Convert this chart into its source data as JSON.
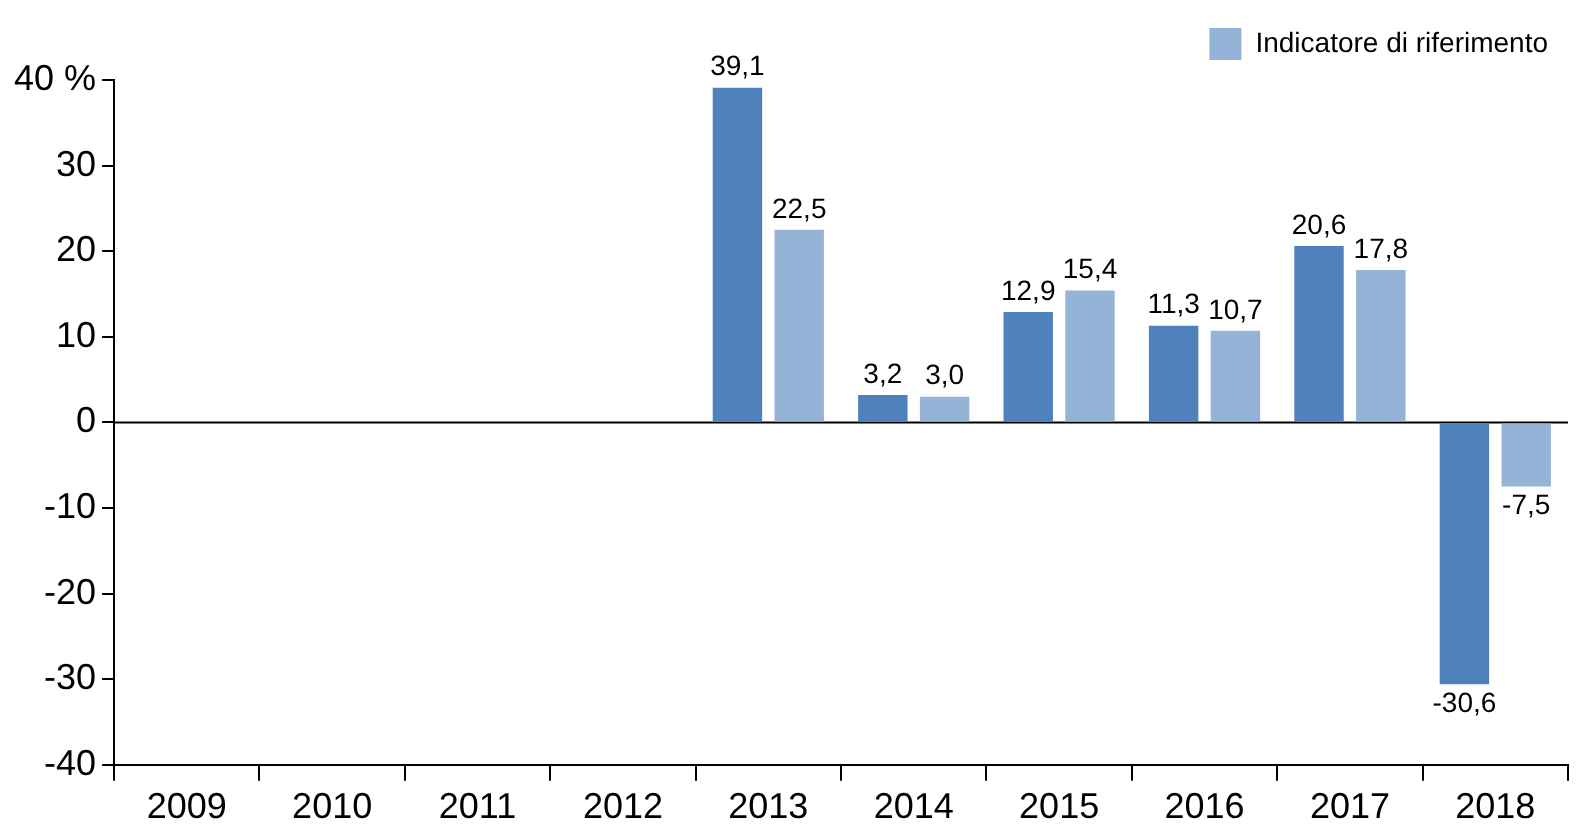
{
  "chart_data": {
    "type": "bar",
    "categories": [
      "2009",
      "2010",
      "2011",
      "2012",
      "2013",
      "2014",
      "2015",
      "2016",
      "2017",
      "2018"
    ],
    "series": [
      {
        "color": "#4f81bd",
        "values": [
          null,
          null,
          null,
          null,
          39.1,
          3.2,
          12.9,
          11.3,
          20.6,
          -30.6
        ],
        "value_labels": [
          null,
          null,
          null,
          null,
          "39,1",
          "3,2",
          "12,9",
          "11,3",
          "20,6",
          "-30,6"
        ]
      },
      {
        "name": "Indicatore di riferimento",
        "color": "#95b3d7",
        "values": [
          null,
          null,
          null,
          null,
          22.5,
          3.0,
          15.4,
          10.7,
          17.8,
          -7.5
        ],
        "value_labels": [
          null,
          null,
          null,
          null,
          "22,5",
          "3,0",
          "15,4",
          "10,7",
          "17,8",
          "-7,5"
        ]
      }
    ],
    "ylim": [
      -40,
      40
    ],
    "yticks": [
      -40,
      -30,
      -20,
      -10,
      0,
      10,
      20,
      30,
      {
        "value": 40,
        "label": "40 %"
      }
    ],
    "ref_lines": [
      {
        "axis": "y",
        "value": 0,
        "color": "#000000"
      }
    ],
    "grid": false,
    "legend": "top"
  }
}
